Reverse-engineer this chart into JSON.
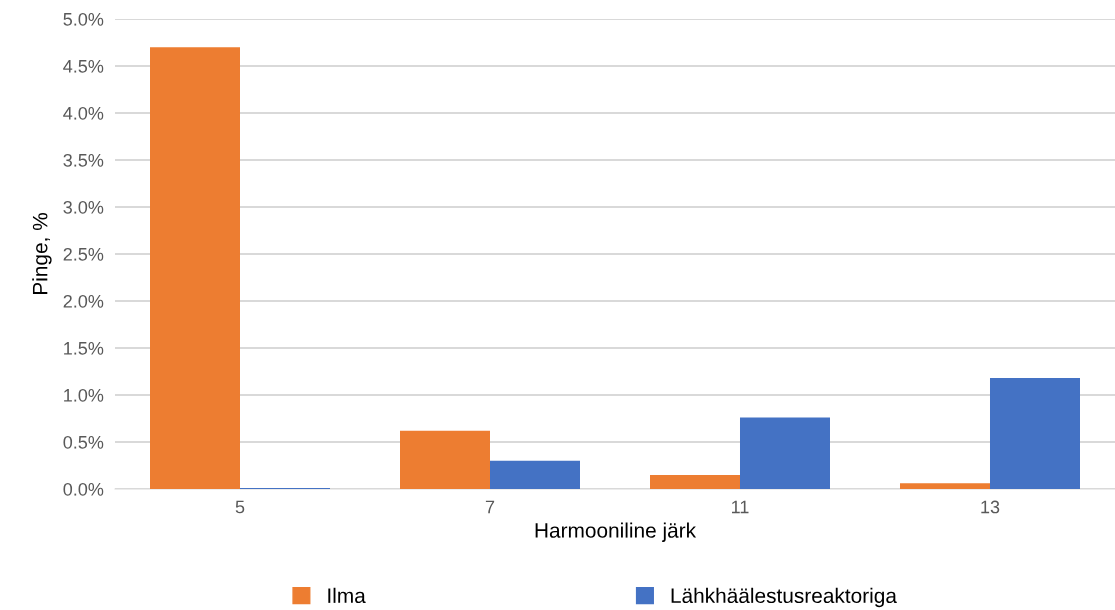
{
  "chart_data": {
    "type": "bar",
    "xlabel": "Harmooniline järk",
    "ylabel": "Pinge, %",
    "categories": [
      "5",
      "7",
      "11",
      "13"
    ],
    "series": [
      {
        "name": "Ilma",
        "color": "#ed7d31",
        "values": [
          4.7,
          0.62,
          0.15,
          0.06
        ]
      },
      {
        "name": "Lähkhäälestusreaktoriga",
        "color": "#4472c4",
        "values": [
          0.01,
          0.3,
          0.76,
          1.18
        ]
      }
    ],
    "ylim": [
      0,
      5
    ],
    "yticks": [
      {
        "value": 0,
        "label": "0.0%"
      },
      {
        "value": 0.5,
        "label": "0.5%"
      },
      {
        "value": 1,
        "label": "1.0%"
      },
      {
        "value": 1.5,
        "label": "1.5%"
      },
      {
        "value": 2,
        "label": "2.0%"
      },
      {
        "value": 2.5,
        "label": "2.5%"
      },
      {
        "value": 3,
        "label": "3.0%"
      },
      {
        "value": 3.5,
        "label": "3.5%"
      },
      {
        "value": 4,
        "label": "4.0%"
      },
      {
        "value": 4.5,
        "label": "4.5%"
      },
      {
        "value": 5,
        "label": "5.0%"
      }
    ],
    "grid": "y",
    "legend": "bottom"
  }
}
